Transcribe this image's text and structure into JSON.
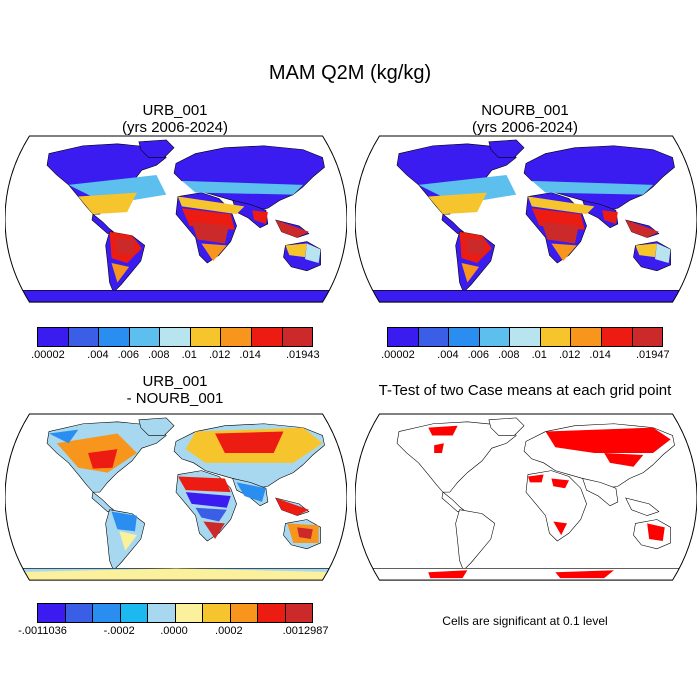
{
  "title": "MAM Q2M (kg/kg)",
  "panels": [
    {
      "id": "urb",
      "title_line1": "URB_001",
      "title_line2": "(yrs 2006-2024)"
    },
    {
      "id": "nourb",
      "title_line1": "NOURB_001",
      "title_line2": "(yrs 2006-2024)"
    },
    {
      "id": "diff",
      "title_line1": "URB_001",
      "title_line2": "- NOURB_001"
    },
    {
      "id": "ttest",
      "title_line1": "T-Test of two Case means at each grid point",
      "title_line2": ""
    }
  ],
  "colorbars": {
    "urb": {
      "colors": [
        "#3a1cf0",
        "#3b5ee6",
        "#2a8ef0",
        "#5cbfee",
        "#b8e4f0",
        "#f6c52e",
        "#f7951c",
        "#ec1c12",
        "#cc2a2a"
      ],
      "labels": [
        ".00002",
        ".004",
        ".006",
        ".008",
        ".01",
        ".012",
        ".014",
        ".01943"
      ]
    },
    "nourb": {
      "colors": [
        "#3a1cf0",
        "#3b5ee6",
        "#2a8ef0",
        "#5cbfee",
        "#b8e4f0",
        "#f6c52e",
        "#f7951c",
        "#ec1c12",
        "#cc2a2a"
      ],
      "labels": [
        ".00002",
        ".004",
        ".006",
        ".008",
        ".01",
        ".012",
        ".014",
        ".01947"
      ]
    },
    "diff": {
      "colors": [
        "#3a1cf0",
        "#3b5ee6",
        "#2a8ef0",
        "#1cb8f0",
        "#a8d8f0",
        "#fbf19c",
        "#f6c52e",
        "#f7951c",
        "#ec1c12",
        "#cc2a2a"
      ],
      "labels": [
        "-.0011036",
        "-.0002",
        ".0000",
        ".0002",
        ".0012987"
      ]
    }
  },
  "ttest_note": "Cells are significant at 0.1 level",
  "colors": {
    "ocean": "#ffffff",
    "significant": "#ff0000",
    "coast": "#000000"
  }
}
